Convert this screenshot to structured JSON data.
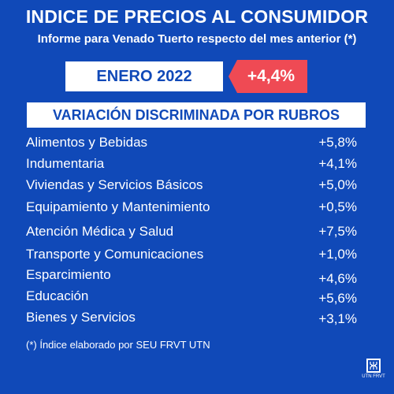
{
  "header": {
    "title": "INDICE DE PRECIOS AL CONSUMIDOR",
    "subtitle": "Informe para Venado Tuerto respecto del mes anterior (*)"
  },
  "period": {
    "month": "ENERO 2022",
    "value": "+4,4%",
    "value_color": "#ef4a54"
  },
  "section": {
    "title": "VARIACIÓN DISCRIMINADA POR RUBROS"
  },
  "rubros": [
    {
      "name": "Alimentos y Bebidas",
      "value": "+5,8%"
    },
    {
      "name": "Indumentaria",
      "value": "+4,1%"
    },
    {
      "name": "Viviendas y Servicios Básicos",
      "value": "+5,0%"
    },
    {
      "name": "Equipamiento y Mantenimiento",
      "value": "+0,5%"
    },
    {
      "name": "Atención Médica y Salud",
      "value": "+7,5%"
    },
    {
      "name": "Transporte y Comunicaciones",
      "value": "+1,0%"
    },
    {
      "name": "Esparcimiento",
      "value": "+4,6%"
    },
    {
      "name": "Educación",
      "value": "+5,6%"
    },
    {
      "name": "Bienes y Servicios",
      "value": "+3,1%"
    }
  ],
  "footnote": "(*) Índice elaborado por SEU FRVT UTN",
  "logo": {
    "icon": "utn-logo-icon",
    "label": "UTN FRVT"
  },
  "colors": {
    "background": "#1049b8",
    "accent": "#ef4a54",
    "text": "#ffffff"
  }
}
